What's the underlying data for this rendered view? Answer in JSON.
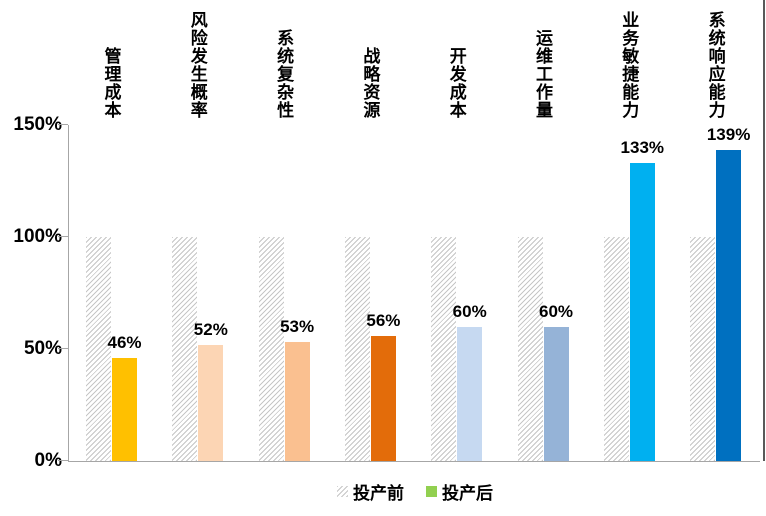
{
  "chart_data": {
    "type": "bar",
    "title": "",
    "categories": [
      "管理成本",
      "风险发生概率",
      "系统复杂性",
      "战略资源",
      "开发成本",
      "运维工作量",
      "业务敏捷能力",
      "系统响应能力"
    ],
    "series": [
      {
        "name": "投产前",
        "style": "hatched-gray",
        "values": [
          100,
          100,
          100,
          100,
          100,
          100,
          100,
          100
        ]
      },
      {
        "name": "投产后",
        "style": "solid",
        "values": [
          46,
          52,
          53,
          56,
          60,
          60,
          133,
          139
        ],
        "colors": [
          "#FFC000",
          "#FCD5B4",
          "#FAC090",
          "#E36C0A",
          "#C6D9F1",
          "#95B3D7",
          "#00B0F0",
          "#0070C0"
        ]
      }
    ],
    "value_labels": [
      "46%",
      "52%",
      "53%",
      "56%",
      "60%",
      "60%",
      "133%",
      "139%"
    ],
    "yticks": [
      "0%",
      "50%",
      "100%",
      "150%"
    ],
    "ylim": [
      0,
      150
    ],
    "grid": false,
    "legend": {
      "position": "bottom",
      "items": [
        {
          "label": "投产前",
          "swatch": "hatched-gray"
        },
        {
          "label": "投产后",
          "swatch": "solid",
          "color": "#92D050"
        }
      ]
    }
  },
  "colors": {
    "axis": "#A6A6A6",
    "hatch_line": "#C6C6C6",
    "text": "#000000",
    "right_border": "#595959"
  }
}
